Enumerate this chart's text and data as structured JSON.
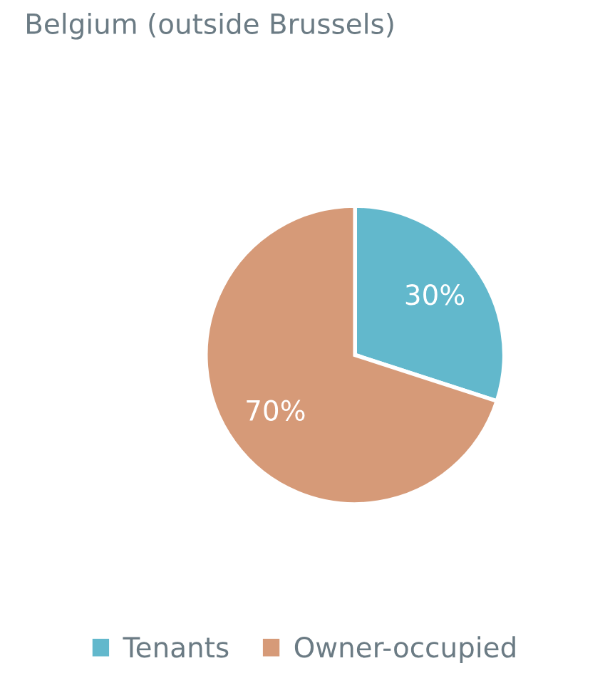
{
  "chart_data": {
    "type": "pie",
    "title": "Belgium (outside Brussels)",
    "categories": [
      "Tenants",
      "Owner-occupied"
    ],
    "values": [
      30,
      70
    ],
    "colors": [
      "#62b8cc",
      "#d69a78"
    ],
    "value_labels": [
      "30%",
      "70%"
    ],
    "legend": "bottom"
  }
}
